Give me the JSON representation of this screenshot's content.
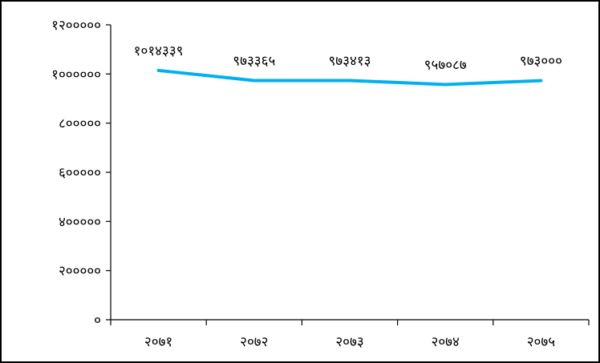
{
  "chart_data": {
    "type": "line",
    "title": "",
    "xlabel": "",
    "ylabel": "",
    "categories": [
      "२०७१",
      "२०७२",
      "२०७३",
      "२०७४",
      "२०७५"
    ],
    "series": [
      {
        "values": [
          1014339,
          973365,
          973413,
          957087,
          973000
        ],
        "data_labels": [
          "१०१४३३९",
          "९७३३६५",
          "९७३४१३",
          "९५७०८७",
          "९७३०००"
        ],
        "color": "#00b0f0"
      }
    ],
    "ylim": [
      0,
      1200000
    ],
    "yticks": [
      0,
      200000,
      400000,
      600000,
      800000,
      1000000,
      1200000
    ],
    "ytick_labels": [
      "०",
      "२०००००",
      "४०००००",
      "६०००००",
      "८०००००",
      "१००००००",
      "१२०००००"
    ],
    "grid": false,
    "legend": "none"
  }
}
